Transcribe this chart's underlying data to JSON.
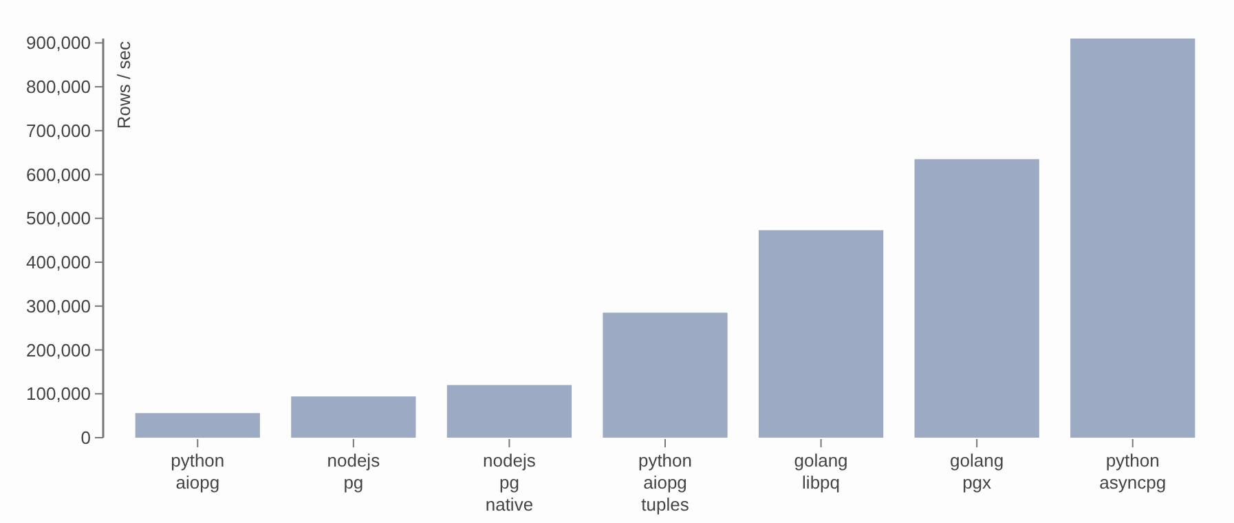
{
  "chart_data": {
    "type": "bar",
    "ylabel": "Rows / sec",
    "categories": [
      "python\naiopg",
      "nodejs\npg",
      "nodejs\npg\nnative",
      "python\naiopg\ntuples",
      "golang\nlibpq",
      "golang\npgx",
      "python\nasyncpg"
    ],
    "values": [
      56000,
      94000,
      120000,
      285000,
      473000,
      635000,
      910000
    ],
    "color": "#9daac4",
    "ylim": [
      0,
      910000
    ],
    "yticks": [
      {
        "value": 0,
        "label": "0"
      },
      {
        "value": 100000,
        "label": "100,000"
      },
      {
        "value": 200000,
        "label": "200,000"
      },
      {
        "value": 300000,
        "label": "300,000"
      },
      {
        "value": 400000,
        "label": "400,000"
      },
      {
        "value": 500000,
        "label": "500,000"
      },
      {
        "value": 600000,
        "label": "600,000"
      },
      {
        "value": 700000,
        "label": "700,000"
      },
      {
        "value": 800000,
        "label": "800,000"
      },
      {
        "value": 900000,
        "label": "900,000"
      }
    ],
    "grid": false
  }
}
